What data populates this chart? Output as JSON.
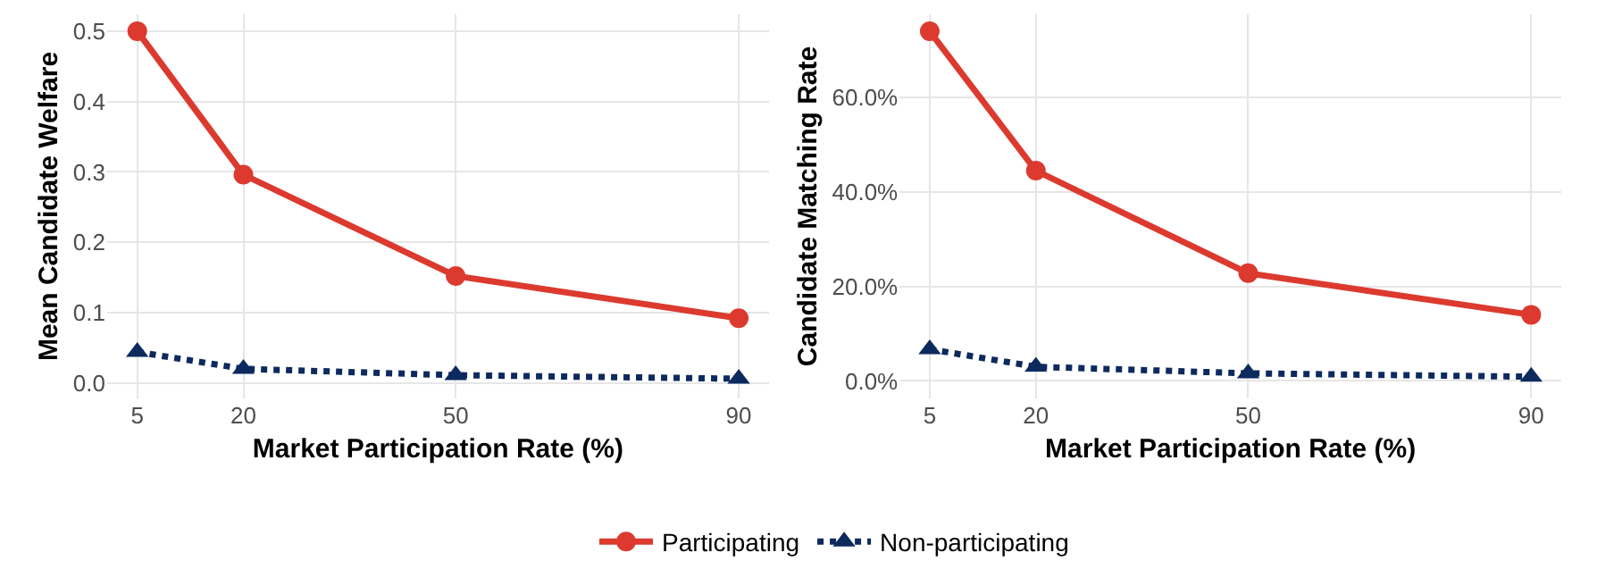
{
  "chart_data": [
    {
      "type": "line",
      "xlabel": "Market Participation Rate (%)",
      "ylabel": "Mean Candidate Welfare",
      "x": [
        5,
        20,
        50,
        90
      ],
      "series": [
        {
          "name": "Participating",
          "color": "#dc3a2f",
          "values": [
            0.5,
            0.296,
            0.152,
            0.092
          ],
          "marker": "circle",
          "line_style": "solid"
        },
        {
          "name": "Non-participating",
          "color": "#0d2a5e",
          "values": [
            0.044,
            0.02,
            0.011,
            0.006
          ],
          "marker": "triangle",
          "line_style": "dotted"
        }
      ],
      "xlim": [
        0.75,
        94.25
      ],
      "xticks": [
        5,
        20,
        50,
        90
      ],
      "ylim": [
        -0.022,
        0.524
      ],
      "yticks": [
        {
          "value": 0,
          "label": "0.0"
        },
        0.1,
        0.2,
        0.3,
        0.4,
        0.5
      ],
      "grid": true,
      "legend": "bottom"
    },
    {
      "type": "line",
      "xlabel": "Market Participation Rate (%)",
      "ylabel": "Candidate Matching Rate",
      "x": [
        5,
        20,
        50,
        90
      ],
      "series": [
        {
          "color": "#dc3a2f",
          "values": [
            74,
            44.5,
            22.8,
            14
          ],
          "marker": "circle",
          "line_style": "solid"
        },
        {
          "color": "#0d2a5e",
          "values": [
            6.7,
            3,
            1.6,
            0.9
          ],
          "marker": "triangle",
          "line_style": "dotted"
        }
      ],
      "xlim": [
        0.75,
        94.25
      ],
      "xticks": [
        5,
        20,
        50,
        90
      ],
      "ylim": [
        -3.7,
        77.6
      ],
      "yticks": [
        {
          "value": 0,
          "label": "0.0%"
        },
        {
          "value": 20,
          "label": "20.0%"
        },
        {
          "value": 40,
          "label": "40.0%"
        },
        {
          "value": 60,
          "label": "60.0%"
        }
      ],
      "grid": true
    }
  ]
}
